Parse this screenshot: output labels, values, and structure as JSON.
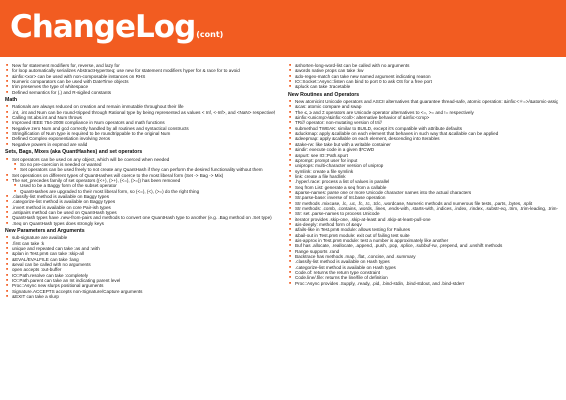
{
  "header": {
    "title": "ChangeLog",
    "subtitle": "(cont)"
  },
  "left": {
    "intro": [
      "New for statement modifiers for, reverse, and lazy for",
      "for loop automatically serializes AbstractHyperSeq; use new for statement modifiers hyper for & race for to avoid",
      "&infix:<xor> can be used with non-composable instances on RHS",
      "Numeric comparators can be used with DateTime objects",
      "trim preserves the type of whitespace",
      "Defined semantics for (.) and R-sigiled constants"
    ],
    "math_heading": "Math",
    "math": [
      "Rationals are always reduced on creation and remain immutable throughout their life",
      ".int, .int and Num can be round-tripped through Rational type by being represented as values < Inf, <-Inf>, and <NaN> respectively. Zero-denominator Rational sized normalized to one of those three values",
      "Calling Int.abs.int and Num throws",
      "Improved IEEE 754-2008 compliance in Num operators and math functions",
      "Negative zero Num and gcd correctly handled by all routines and syntactical constructs",
      "Stringification of Num type is required to be roundtrippable to the original Num",
      "Defined Complex exponentiation involving zeros",
      "Negative powers in expmod are valid"
    ],
    "sets_heading": "Sets, Bags, Mixes (aka QuantHashes) and set operators",
    "sets": [
      "Set operators can be used on any object, which will be coerced when needed",
      "So no pre-coercion is needed or wanted",
      "Set operators can be used freely to not create any QuantHash if they can perform the desired functionality without them",
      "Set operations on different types of QuantHashes will coerce to the most liberal form (Set -> Bag -> Mix)",
      "The set_precedes family of set operators ((<+), (>+), (<=), (>=)) has been removed",
      "Used to be a Baggy form of the subset operator",
      "QuantHashes are upgraded to their most liberal form, so (<=), (<), (>=) do the right thing",
      ".classify-list method is available on Baggy types",
      ".categorize-list method is available on Baggy types",
      ".invert method is available on core Pair-ish types",
      ".antipairs method can be used on QuantHash types",
      "QuantHash types have .new-from-pairs and methods to convert one QuantHash type to another (e.g. .Bag method on .Set type)",
      ".Seq on QuantHash types does strongly keys"
    ],
    "params_heading": "New Parameters and Arguments",
    "params": [
      "sub-signature are available",
      ".first can take :k",
      "unique and repeated can take :as and :with",
      "&plan in Test.pm6 can take :skip-all",
      "&EVAL/EVALFILE can take :lang",
      "&eval can be called with no arguments",
      "open accepts :out-buffer",
      "IO::Path.resolve can take :completely",
      "IO::Path.parent can take an Int indicating parent level",
      "Proc::Async new slurps positional arguments",
      "Signature.ACCEPTS accepts non-Signature/Capture arguments",
      "&EXIT can take a slurp"
    ]
  },
  "right": {
    "intro": [
      "&shorten-long-word-list can be called with no arguments",
      "&words native props can take :kw",
      "&do-regex-match can take new named argument indicating reason",
      "IO::Socket::Async::listen can bind to port 0 to ask OS for a free port",
      "&pluck can take :tracetable"
    ],
    "routines_heading": "New Routines and Operators",
    "routines": [
      "New atomicint Unicode operators and ASCII alternatives that guarantee thread-safe, atomic operation: &infix:<⚛=>/&atomic-assign, &prefix:<⚛>/&atomic-fetch, &prefix:<++⚛>/&atomic-inc-fetch, &postfix:<⚛++>/&atomic-fetch-inc, &prefix:<--⚛>/&atomic-dec-fetch, &postfix:<⚛-->/&atomic-fetch-dec, &infix:<⚛+=>/&atomic-fetch-add, and &infix:<⚛-=>/&atomic-fetch-sub",
      "&cas: atomic compare and swap",
      "The ≤, ≥ and ≠ operators are Unicode operator alternatives to <=, >= and != respectively",
      "&infix:<unicmp>/&infix:<coll>: alternative behavior of &infix:<cmp>",
      "TR/// operator: non-mutating version of tr///",
      "submethod TWEAK: similar to BUILD, except it's compatible with attribute defaults",
      "&duckmap: apply &callable on each element that behaves in such way that &callable can be applied",
      "&deepmap: apply &callable on each element, descending into Iterables",
      "&take-rw: like take but with a writable container",
      "&indir: execute code in a given $*CWD",
      "&spurt: see IO::Path.spurt",
      "&prompt: prompt user for input",
      "uniprops: multi-character version of uniprop",
      "symlink: create a file symlink",
      "link: create a file hardlink",
      ".hyper/.race: process a list of values in parallel",
      "Seq from List: generate a seq from a callable",
      "&parse-names: parse one or more Unicode character names into the actual characters",
      "Str.parse-base: inverse of Int.base operation",
      "Str methods .mixcase, .lc, .uc, .fc, .tc, .tclc, .wordcase, Numeric methods and numerous file tests, .parts, .bytes, .split",
      "Str methods: .comb, .contains, .words, .lines, .ends-with, .starts-with, .indices, .index, .rindex, .substr-eq, .trim, .trim-leading, .trim-trailing, .succ, .pred, .chars",
      "Str: set .parse-names to process Unicode",
      "iterator provides .skip-one, .skip-at-least and .skip-at-least-pull-one",
      "&is-deeply: method form of &eqv",
      "&fails-like in Test.pm6 module: allows testing for Failures",
      "&bail-out in Test.pm6 module: exit out of failing test suite",
      "&is-approx in Test.pm6 module: test a number is approximately like another",
      "Buf has .allocate, .reallocate, .append, .push, .pop, .splice, .subbuf-rw, .prepend, and .unshift methods",
      "Range supports .rand",
      "Backtrace has methods .map, .flat, .concise, and .summary",
      ".classify-list method is available on Hash types",
      ".categorize-list method is available on Hash types",
      "Code.of: returns the return type constraint",
      "Code.line/.file: returns the line/file of definition",
      "Proc::Async provides .Supply, .ready, .pid, .bind-stdin, .bind-stdout, and .bind-stderr"
    ]
  },
  "colors": {
    "accent": "#f25c21",
    "code": "#e86a2c"
  }
}
